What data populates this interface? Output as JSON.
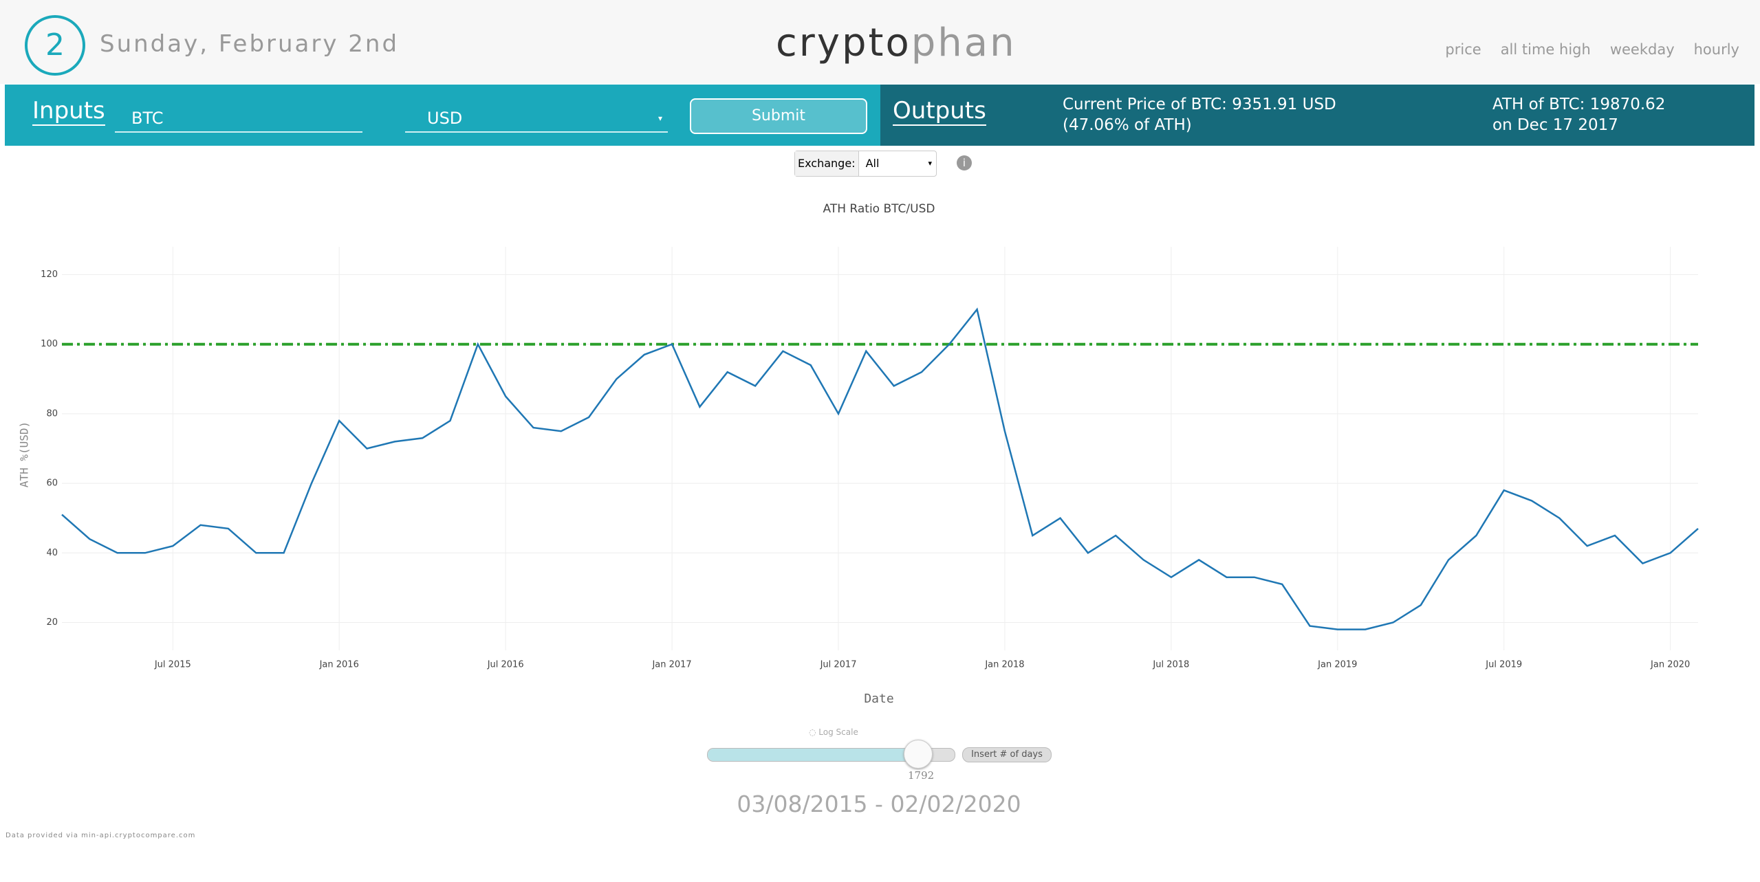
{
  "header": {
    "day_number": "2",
    "date": "Sunday, February 2nd",
    "logo": [
      "crypto",
      "phan"
    ],
    "nav": [
      "price",
      "all time high",
      "weekday",
      "hourly"
    ]
  },
  "inputs": {
    "label": "Inputs",
    "symbol": "BTC",
    "currency": "USD",
    "submit": "Submit"
  },
  "outputs": {
    "label": "Outputs",
    "current": [
      "Current Price of BTC: 9351.91 USD",
      "(47.06% of ATH)"
    ],
    "ath": [
      "ATH of BTC: 19870.62",
      "on Dec 17 2017"
    ]
  },
  "exchange": {
    "label": "Exchange:",
    "value": "All"
  },
  "chart_data": {
    "type": "line",
    "title": "ATH Ratio BTC/USD",
    "x_label": "Date",
    "y_label": "ATH %(USD)",
    "x": [
      "2015-03",
      "2015-04",
      "2015-05",
      "2015-06",
      "2015-07",
      "2015-08",
      "2015-09",
      "2015-10",
      "2015-11",
      "2015-12",
      "2016-01",
      "2016-02",
      "2016-03",
      "2016-04",
      "2016-05",
      "2016-06",
      "2016-07",
      "2016-08",
      "2016-09",
      "2016-10",
      "2016-11",
      "2016-12",
      "2017-01",
      "2017-02",
      "2017-03",
      "2017-04",
      "2017-05",
      "2017-06",
      "2017-07",
      "2017-08",
      "2017-09",
      "2017-10",
      "2017-11",
      "2017-12",
      "2018-01",
      "2018-02",
      "2018-03",
      "2018-04",
      "2018-05",
      "2018-06",
      "2018-07",
      "2018-08",
      "2018-09",
      "2018-10",
      "2018-11",
      "2018-12",
      "2019-01",
      "2019-02",
      "2019-03",
      "2019-04",
      "2019-05",
      "2019-06",
      "2019-07",
      "2019-08",
      "2019-09",
      "2019-10",
      "2019-11",
      "2019-12",
      "2020-01",
      "2020-02"
    ],
    "values": [
      51,
      44,
      40,
      40,
      42,
      48,
      47,
      40,
      40,
      60,
      78,
      70,
      72,
      73,
      78,
      100,
      85,
      76,
      75,
      79,
      90,
      97,
      100,
      82,
      92,
      88,
      98,
      94,
      80,
      98,
      88,
      92,
      100,
      110,
      75,
      45,
      50,
      40,
      45,
      38,
      33,
      38,
      33,
      33,
      31,
      19,
      18,
      18,
      20,
      25,
      38,
      45,
      58,
      55,
      50,
      42,
      45,
      37,
      40,
      47
    ],
    "color": "#1f77b4",
    "reference_line": {
      "value": 100,
      "color": "#2ca02c"
    },
    "xlim": [
      "2015-03",
      "2020-02"
    ],
    "ylim": [
      12,
      128
    ],
    "yticks": [
      20,
      40,
      60,
      80,
      100,
      120
    ],
    "xticks": [
      {
        "value": "2015-07",
        "label": "Jul 2015"
      },
      {
        "value": "2016-01",
        "label": "Jan 2016"
      },
      {
        "value": "2016-07",
        "label": "Jul 2016"
      },
      {
        "value": "2017-01",
        "label": "Jan 2017"
      },
      {
        "value": "2017-07",
        "label": "Jul 2017"
      },
      {
        "value": "2018-01",
        "label": "Jan 2018"
      },
      {
        "value": "2018-07",
        "label": "Jul 2018"
      },
      {
        "value": "2019-01",
        "label": "Jan 2019"
      },
      {
        "value": "2019-07",
        "label": "Jul 2019"
      },
      {
        "value": "2020-01",
        "label": "Jan 2020"
      }
    ],
    "grid": true
  },
  "controls": {
    "log_scale": "Log Scale",
    "days": "1792",
    "days_button": "Insert # of days",
    "range": "03/08/2015 - 02/02/2020"
  },
  "footer": "Data provided via min-api.cryptocompare.com"
}
